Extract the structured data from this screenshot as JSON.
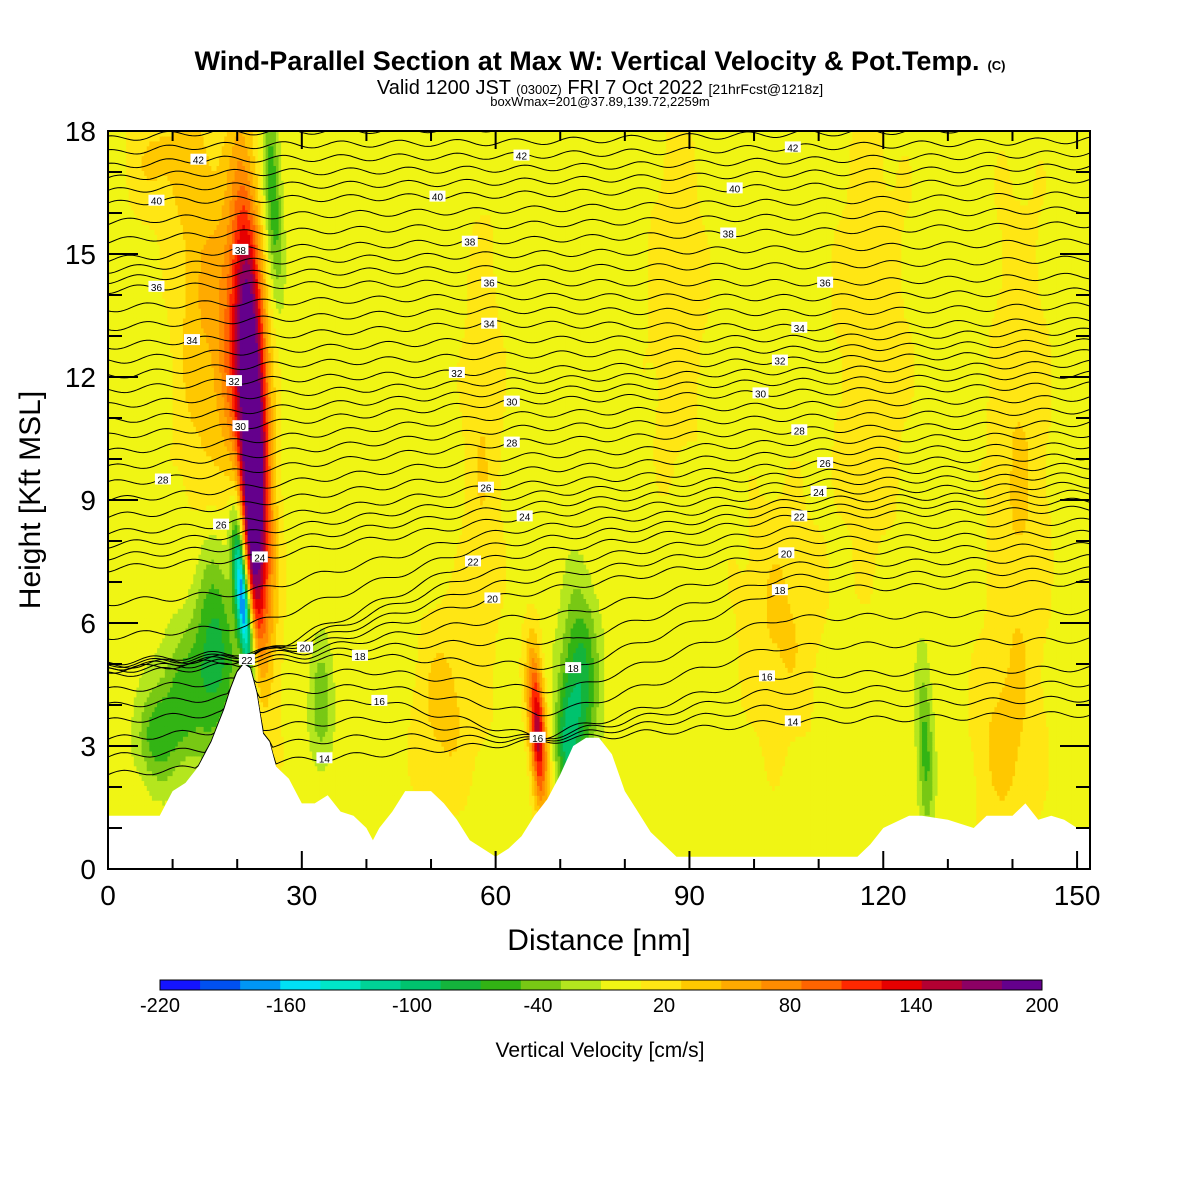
{
  "header": {
    "title": "Wind-Parallel Section at Max W: Vertical Velocity & Pot.Temp.",
    "copyright": "(C)",
    "valid_prefix": "Valid 1200 JST",
    "valid_utc": "(0300Z)",
    "valid_date": "FRI 7 Oct 2022",
    "forecast": "[21hrFcst@1218z]",
    "box_info": "boxWmax=201@37.89,139.72,2259m"
  },
  "colors": {
    "palette": [
      "#1414ff",
      "#0050f0",
      "#0096f5",
      "#00e1f5",
      "#00e6c8",
      "#00d296",
      "#00c36e",
      "#14b43c",
      "#32b414",
      "#78c814",
      "#b4e61e",
      "#f0f514",
      "#ffe614",
      "#ffc800",
      "#ffaa00",
      "#ff8c00",
      "#ff6400",
      "#ff2800",
      "#e60000",
      "#b40032",
      "#8c0064",
      "#64008c"
    ],
    "terrain": "#ffffff",
    "contour": "#000000"
  },
  "chart_data": {
    "type": "heatmap",
    "xlabel": "Distance [nm]",
    "ylabel": "Height [Kft MSL]",
    "xlim": [
      0,
      152
    ],
    "ylim": [
      0,
      18
    ],
    "xticks": [
      0,
      30,
      60,
      90,
      120,
      150
    ],
    "yticks": [
      0,
      3,
      6,
      9,
      12,
      15,
      18
    ],
    "colorbar": {
      "label": "Vertical Velocity [cm/s]",
      "range": [
        -220,
        200
      ],
      "ticks": [
        -220,
        -160,
        -100,
        -40,
        20,
        80,
        140,
        200
      ]
    },
    "terrain_profile": {
      "x": [
        0,
        5,
        8,
        10,
        12,
        14,
        16,
        17,
        18,
        19,
        20,
        21,
        22,
        23,
        24,
        25,
        26,
        28,
        30,
        32,
        34,
        36,
        38,
        40,
        41,
        42,
        44,
        46,
        48,
        50,
        52,
        54,
        56,
        58,
        60,
        62,
        64,
        66,
        67,
        68,
        70,
        72,
        74,
        76,
        78,
        80,
        82,
        84,
        86,
        88,
        90,
        95,
        100,
        110,
        116,
        118,
        120,
        124,
        126,
        130,
        134,
        136,
        140,
        142,
        144,
        146,
        148,
        150,
        152
      ],
      "height": [
        1.3,
        1.3,
        1.3,
        1.9,
        2.1,
        2.5,
        3.1,
        3.5,
        3.9,
        4.4,
        4.8,
        5.0,
        4.9,
        4.3,
        3.3,
        3.1,
        2.5,
        2.2,
        1.6,
        1.6,
        1.8,
        1.4,
        1.3,
        1.0,
        0.7,
        1.0,
        1.4,
        1.9,
        1.9,
        1.9,
        1.6,
        1.2,
        0.7,
        0.5,
        0.3,
        0.5,
        0.8,
        1.3,
        1.5,
        1.7,
        2.3,
        3.0,
        3.2,
        3.2,
        2.8,
        1.9,
        1.4,
        0.9,
        0.6,
        0.3,
        0.3,
        0.3,
        0.3,
        0.3,
        0.3,
        0.6,
        1.0,
        1.3,
        1.3,
        1.2,
        1.0,
        1.3,
        1.3,
        1.6,
        1.2,
        1.3,
        1.2,
        1.0,
        1.0
      ]
    },
    "w_features": [
      {
        "x": 22.5,
        "height": 11.5,
        "w": 200,
        "sx": 1.6,
        "sy": 3.6,
        "tilt": -0.28
      },
      {
        "x": 22.2,
        "height": 8.0,
        "w": 120,
        "sx": 1.2,
        "sy": 1.8,
        "tilt": -0.25
      },
      {
        "x": 19.5,
        "height": 12.5,
        "w": 80,
        "sx": 2.2,
        "sy": 2.5,
        "tilt": -0.2
      },
      {
        "x": 21.0,
        "height": 6.4,
        "w": -190,
        "sx": 0.8,
        "sy": 1.2,
        "tilt": -0.6
      },
      {
        "x": 20.5,
        "height": 8.0,
        "w": -60,
        "sx": 0.8,
        "sy": 1.2,
        "tilt": -0.3
      },
      {
        "x": 25.5,
        "height": 16.5,
        "w": -70,
        "sx": 0.9,
        "sy": 1.6,
        "tilt": -0.3
      },
      {
        "x": 16.5,
        "height": 5.3,
        "w": -80,
        "sx": 2.5,
        "sy": 1.7,
        "tilt": 0
      },
      {
        "x": 11.0,
        "height": 4.0,
        "w": -55,
        "sx": 2.5,
        "sy": 1.2,
        "tilt": 0
      },
      {
        "x": 7.0,
        "height": 3.2,
        "w": -50,
        "sx": 2.0,
        "sy": 0.8,
        "tilt": 0
      },
      {
        "x": 33.0,
        "height": 4.0,
        "w": -45,
        "sx": 1.3,
        "sy": 1.1,
        "tilt": 0
      },
      {
        "x": 66.5,
        "height": 3.4,
        "w": 150,
        "sx": 0.9,
        "sy": 1.3,
        "tilt": -0.35
      },
      {
        "x": 73.0,
        "height": 4.5,
        "w": -85,
        "sx": 2.0,
        "sy": 1.6,
        "tilt": 0
      },
      {
        "x": 71.0,
        "height": 3.0,
        "w": -65,
        "sx": 1.2,
        "sy": 1.0,
        "tilt": 0
      },
      {
        "x": 126.5,
        "height": 3.0,
        "w": -55,
        "sx": 0.9,
        "sy": 1.6,
        "tilt": -0.15
      },
      {
        "x": 14.0,
        "height": 14.0,
        "w": 40,
        "sx": 2.5,
        "sy": 3.5,
        "tilt": 0
      },
      {
        "x": 8.0,
        "height": 17.3,
        "w": 30,
        "sx": 3.5,
        "sy": 1.0,
        "tilt": 0
      },
      {
        "x": 52.0,
        "height": 4.0,
        "w": 35,
        "sx": 3.0,
        "sy": 1.5,
        "tilt": 0
      },
      {
        "x": 58.0,
        "height": 10.0,
        "w": 25,
        "sx": 2.0,
        "sy": 4.0,
        "tilt": 0
      },
      {
        "x": 104.0,
        "height": 6.0,
        "w": 30,
        "sx": 4.0,
        "sy": 2.0,
        "tilt": 0
      },
      {
        "x": 141.0,
        "height": 9.0,
        "w": 28,
        "sx": 3.0,
        "sy": 5.0,
        "tilt": 0
      },
      {
        "x": 88.0,
        "height": 14.0,
        "w": 22,
        "sx": 3.0,
        "sy": 3.0,
        "tilt": 0
      },
      {
        "x": 118.0,
        "height": 13.0,
        "w": 20,
        "sx": 4.0,
        "sy": 4.0,
        "tilt": 0
      },
      {
        "x": 138.0,
        "height": 3.0,
        "w": 25,
        "sx": 3.0,
        "sy": 1.5,
        "tilt": 0
      }
    ],
    "theta_contours": [
      14,
      16,
      18,
      20,
      22,
      24,
      26,
      28,
      30,
      32,
      34,
      36,
      38,
      40,
      42
    ],
    "contour_labels": [
      {
        "text": "42",
        "x": 14,
        "height": 17.3
      },
      {
        "text": "42",
        "x": 64,
        "height": 17.4
      },
      {
        "text": "42",
        "x": 106,
        "height": 17.6
      },
      {
        "text": "40",
        "x": 7.5,
        "height": 16.3
      },
      {
        "text": "40",
        "x": 51,
        "height": 16.4
      },
      {
        "text": "40",
        "x": 97,
        "height": 16.6
      },
      {
        "text": "38",
        "x": 20.5,
        "height": 15.1
      },
      {
        "text": "38",
        "x": 56,
        "height": 15.3
      },
      {
        "text": "38",
        "x": 96,
        "height": 15.5
      },
      {
        "text": "36",
        "x": 7.5,
        "height": 14.2
      },
      {
        "text": "36",
        "x": 59,
        "height": 14.3
      },
      {
        "text": "36",
        "x": 111,
        "height": 14.3
      },
      {
        "text": "34",
        "x": 13,
        "height": 12.9
      },
      {
        "text": "34",
        "x": 59,
        "height": 13.3
      },
      {
        "text": "34",
        "x": 107,
        "height": 13.2
      },
      {
        "text": "32",
        "x": 19.5,
        "height": 11.9
      },
      {
        "text": "32",
        "x": 54,
        "height": 12.1
      },
      {
        "text": "32",
        "x": 104,
        "height": 12.4
      },
      {
        "text": "30",
        "x": 20.5,
        "height": 10.8
      },
      {
        "text": "30",
        "x": 62.5,
        "height": 11.4
      },
      {
        "text": "30",
        "x": 101,
        "height": 11.6
      },
      {
        "text": "28",
        "x": 8.5,
        "height": 9.5
      },
      {
        "text": "28",
        "x": 62.5,
        "height": 10.4
      },
      {
        "text": "28",
        "x": 107,
        "height": 10.7
      },
      {
        "text": "26",
        "x": 17.5,
        "height": 8.4
      },
      {
        "text": "26",
        "x": 58.5,
        "height": 9.3
      },
      {
        "text": "26",
        "x": 111,
        "height": 9.9
      },
      {
        "text": "24",
        "x": 23.5,
        "height": 7.6
      },
      {
        "text": "24",
        "x": 64.5,
        "height": 8.6
      },
      {
        "text": "24",
        "x": 110,
        "height": 9.2
      },
      {
        "text": "22",
        "x": 21.5,
        "height": 5.1
      },
      {
        "text": "22",
        "x": 56.5,
        "height": 7.5
      },
      {
        "text": "22",
        "x": 107,
        "height": 8.6
      },
      {
        "text": "20",
        "x": 30.5,
        "height": 5.4
      },
      {
        "text": "20",
        "x": 59.5,
        "height": 6.6
      },
      {
        "text": "20",
        "x": 105,
        "height": 7.7
      },
      {
        "text": "18",
        "x": 39,
        "height": 5.2
      },
      {
        "text": "18",
        "x": 72,
        "height": 4.9
      },
      {
        "text": "18",
        "x": 104,
        "height": 6.8
      },
      {
        "text": "16",
        "x": 42,
        "height": 4.1
      },
      {
        "text": "16",
        "x": 66.5,
        "height": 3.2
      },
      {
        "text": "16",
        "x": 102,
        "height": 4.7
      },
      {
        "text": "14",
        "x": 33.5,
        "height": 2.7
      },
      {
        "text": "14",
        "x": 106,
        "height": 3.6
      }
    ]
  }
}
